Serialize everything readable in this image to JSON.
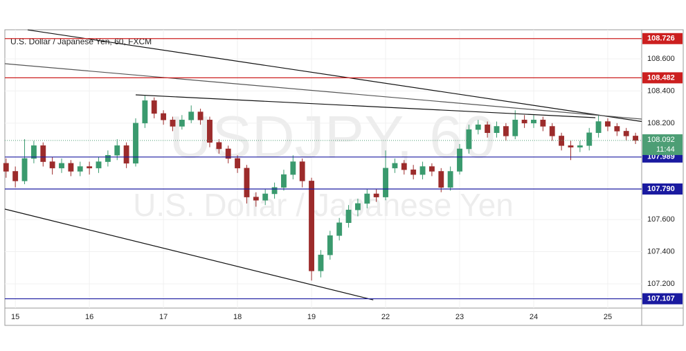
{
  "chart_data": {
    "type": "candlestick",
    "title": "U.S. Dollar / Japanese Yen, 60, FXCM",
    "watermark": "USDJPY, 60",
    "watermark_subtitle": "U.S. Dollar / Japanese Yen",
    "up_color": "#3a9a6e",
    "down_color": "#9c2b2b",
    "x": [
      -3,
      0,
      3,
      6,
      9,
      12,
      15,
      18,
      21,
      24,
      27,
      30,
      33,
      36,
      39,
      42,
      45,
      48,
      51,
      54,
      57,
      60,
      63,
      66,
      69,
      72,
      75,
      78,
      81,
      84,
      87,
      90,
      93,
      96,
      99,
      102,
      105,
      108,
      111,
      114,
      117,
      120,
      123,
      126,
      129,
      132,
      135,
      138,
      141,
      144,
      147,
      150,
      153,
      156,
      159,
      162,
      165,
      168,
      171,
      174,
      177,
      180,
      183,
      186,
      189,
      192,
      195,
      198,
      201
    ],
    "open": [
      107.95,
      107.9,
      107.84,
      107.98,
      108.06,
      107.96,
      107.92,
      107.95,
      107.9,
      107.93,
      107.92,
      107.96,
      108.0,
      108.06,
      107.95,
      108.2,
      108.34,
      108.26,
      108.22,
      108.18,
      108.22,
      108.27,
      108.22,
      108.08,
      108.04,
      107.98,
      107.92,
      107.74,
      107.72,
      107.76,
      107.8,
      107.88,
      107.96,
      107.84,
      107.28,
      107.38,
      107.5,
      107.58,
      107.66,
      107.7,
      107.76,
      107.74,
      107.92,
      107.95,
      107.91,
      107.88,
      107.93,
      107.9,
      107.8,
      107.9,
      108.04,
      108.16,
      108.19,
      108.14,
      108.18,
      108.12,
      108.22,
      108.2,
      108.22,
      108.18,
      108.12,
      108.06,
      108.05,
      108.06,
      108.14,
      108.21,
      108.18,
      108.15,
      108.12
    ],
    "high": [
      107.98,
      107.93,
      108.1,
      108.09,
      108.08,
      107.99,
      107.98,
      107.97,
      107.96,
      107.96,
      107.99,
      108.03,
      108.1,
      108.08,
      108.23,
      108.37,
      108.36,
      108.28,
      108.24,
      108.25,
      108.31,
      108.29,
      108.24,
      108.1,
      108.06,
      108.0,
      107.94,
      107.77,
      107.79,
      107.83,
      107.91,
      108.0,
      107.98,
      107.86,
      107.41,
      107.53,
      107.61,
      107.69,
      107.73,
      107.79,
      107.79,
      108.03,
      107.98,
      107.97,
      107.94,
      107.96,
      107.95,
      107.92,
      107.93,
      108.07,
      108.19,
      108.22,
      108.21,
      108.21,
      108.2,
      108.28,
      108.25,
      108.25,
      108.24,
      108.2,
      108.14,
      108.09,
      108.09,
      108.17,
      108.25,
      108.23,
      108.2,
      108.17,
      108.14
    ],
    "low": [
      107.86,
      107.8,
      107.82,
      107.95,
      107.93,
      107.88,
      107.89,
      107.87,
      107.87,
      107.88,
      107.89,
      107.93,
      107.97,
      107.92,
      107.93,
      108.17,
      108.23,
      108.19,
      108.15,
      108.16,
      108.2,
      108.19,
      108.05,
      108.01,
      107.95,
      107.89,
      107.7,
      107.68,
      107.69,
      107.73,
      107.78,
      107.85,
      107.8,
      107.22,
      107.24,
      107.35,
      107.47,
      107.55,
      107.62,
      107.67,
      107.71,
      107.72,
      107.89,
      107.88,
      107.85,
      107.85,
      107.87,
      107.77,
      107.78,
      107.88,
      108.01,
      108.13,
      108.11,
      108.11,
      108.09,
      108.1,
      108.17,
      108.17,
      108.15,
      108.09,
      108.03,
      107.97,
      108.02,
      108.03,
      108.11,
      108.15,
      108.12,
      108.09,
      108.07
    ],
    "close": [
      107.9,
      107.84,
      107.98,
      108.06,
      107.96,
      107.92,
      107.95,
      107.9,
      107.93,
      107.92,
      107.96,
      108.0,
      108.06,
      107.95,
      108.2,
      108.34,
      108.26,
      108.22,
      108.18,
      108.22,
      108.27,
      108.22,
      108.08,
      108.04,
      107.98,
      107.92,
      107.74,
      107.72,
      107.76,
      107.8,
      107.88,
      107.96,
      107.84,
      107.28,
      107.38,
      107.5,
      107.58,
      107.66,
      107.7,
      107.76,
      107.74,
      107.92,
      107.95,
      107.91,
      107.88,
      107.93,
      107.9,
      107.8,
      107.9,
      108.04,
      108.16,
      108.19,
      108.14,
      108.18,
      108.12,
      108.22,
      108.2,
      108.22,
      108.18,
      108.12,
      108.06,
      108.05,
      108.06,
      108.14,
      108.21,
      108.18,
      108.15,
      108.12,
      108.092
    ],
    "xlim": [
      -3.4,
      203
    ],
    "xticks": [
      {
        "value": 0,
        "label": "15"
      },
      {
        "value": 24,
        "label": "16"
      },
      {
        "value": 48,
        "label": "17"
      },
      {
        "value": 72,
        "label": "18"
      },
      {
        "value": 96,
        "label": "19"
      },
      {
        "value": 120,
        "label": "22"
      },
      {
        "value": 144,
        "label": "23"
      },
      {
        "value": 168,
        "label": "24"
      },
      {
        "value": 192,
        "label": "25"
      }
    ],
    "ylim": [
      107.049,
      108.781
    ],
    "yticks": [
      {
        "value": 108.6,
        "label": "108.600"
      },
      {
        "value": 108.4,
        "label": "108.400"
      },
      {
        "value": 108.2,
        "label": "108.200"
      },
      {
        "value": 107.6,
        "label": "107.600"
      },
      {
        "value": 107.4,
        "label": "107.400"
      },
      {
        "value": 107.2,
        "label": "107.200"
      }
    ],
    "grid": true,
    "levels": [
      {
        "value": 108.726,
        "label": "108.726",
        "color": "#cc1f1f"
      },
      {
        "value": 108.482,
        "label": "108.482",
        "color": "#cc1f1f"
      },
      {
        "value": 107.989,
        "label": "107.989",
        "color": "#1a1aa0"
      },
      {
        "value": 107.79,
        "label": "107.790",
        "color": "#1a1aa0"
      },
      {
        "value": 107.107,
        "label": "107.107",
        "color": "#1a1aa0"
      }
    ],
    "trendlines": [
      {
        "color": "#111111",
        "x": [
          4,
          203
        ],
        "values": [
          108.78,
          108.21
        ]
      },
      {
        "color": "#555555",
        "x": [
          -3.4,
          203
        ],
        "values": [
          108.57,
          108.225
        ]
      },
      {
        "color": "#111111",
        "x": [
          39,
          188
        ],
        "values": [
          108.376,
          108.234
        ]
      },
      {
        "color": "#111111",
        "x": [
          -3.4,
          116
        ],
        "values": [
          107.665,
          107.1
        ]
      }
    ],
    "last_price": {
      "value": 108.092,
      "label": "108.092",
      "countdown": "11:44",
      "color": "#4d9e75"
    }
  }
}
